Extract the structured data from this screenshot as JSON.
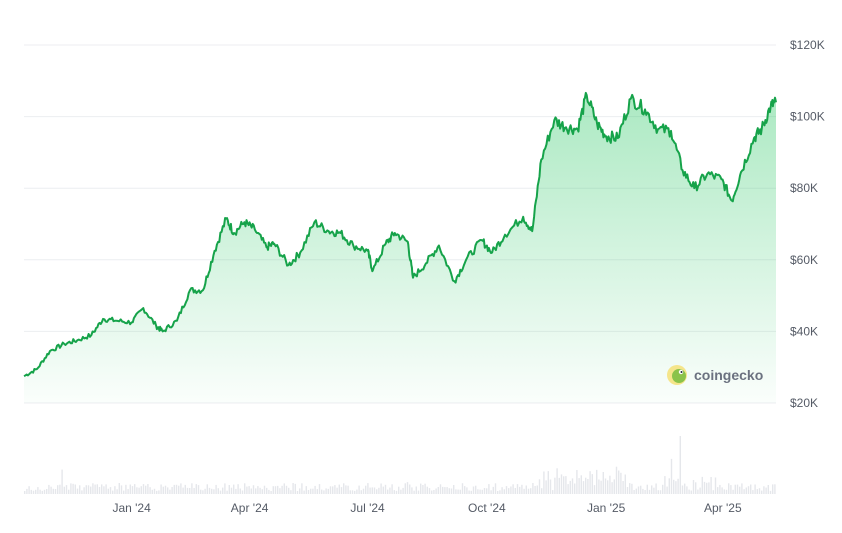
{
  "chart_data": {
    "type": "area",
    "title": "",
    "xlabel": "",
    "ylabel": "",
    "currency": "USD",
    "ylim": [
      20000,
      120000
    ],
    "y_ticks": [
      {
        "value": 120000,
        "label": "$120K"
      },
      {
        "value": 100000,
        "label": "$100K"
      },
      {
        "value": 80000,
        "label": "$80K"
      },
      {
        "value": 60000,
        "label": "$60K"
      },
      {
        "value": 40000,
        "label": "$40K"
      },
      {
        "value": 20000,
        "label": "$20K"
      }
    ],
    "xlim": [
      "2023-10-10",
      "2025-05-12"
    ],
    "x_ticks": [
      {
        "value": "2024-01-01",
        "label": "Jan '24"
      },
      {
        "value": "2024-04-01",
        "label": "Apr '24"
      },
      {
        "value": "2024-07-01",
        "label": "Jul '24"
      },
      {
        "value": "2024-10-01",
        "label": "Oct '24"
      },
      {
        "value": "2025-01-01",
        "label": "Jan '25"
      },
      {
        "value": "2025-04-01",
        "label": "Apr '25"
      }
    ],
    "grid": true,
    "line_color": "#16a34a",
    "fill_color": "#22c55e",
    "volume_color": "#e5e7eb",
    "x": [
      "2023-10-10",
      "2023-10-20",
      "2023-10-30",
      "2023-11-10",
      "2023-11-20",
      "2023-12-01",
      "2023-12-10",
      "2023-12-20",
      "2024-01-01",
      "2024-01-10",
      "2024-01-20",
      "2024-01-25",
      "2024-02-05",
      "2024-02-15",
      "2024-02-25",
      "2024-03-05",
      "2024-03-14",
      "2024-03-20",
      "2024-03-28",
      "2024-04-05",
      "2024-04-14",
      "2024-04-20",
      "2024-05-01",
      "2024-05-10",
      "2024-05-21",
      "2024-06-01",
      "2024-06-10",
      "2024-06-20",
      "2024-07-01",
      "2024-07-05",
      "2024-07-15",
      "2024-07-22",
      "2024-08-01",
      "2024-08-05",
      "2024-08-15",
      "2024-08-25",
      "2024-09-06",
      "2024-09-15",
      "2024-09-27",
      "2024-10-05",
      "2024-10-15",
      "2024-10-29",
      "2024-11-05",
      "2024-11-12",
      "2024-11-22",
      "2024-12-01",
      "2024-12-10",
      "2024-12-17",
      "2024-12-25",
      "2025-01-01",
      "2025-01-10",
      "2025-01-20",
      "2025-01-31",
      "2025-02-10",
      "2025-02-20",
      "2025-03-01",
      "2025-03-10",
      "2025-03-20",
      "2025-03-31",
      "2025-04-08",
      "2025-04-15",
      "2025-04-25",
      "2025-05-01",
      "2025-05-08",
      "2025-05-12"
    ],
    "series": [
      {
        "values": [
          27500,
          29500,
          34500,
          36500,
          37500,
          39000,
          43500,
          43000,
          42500,
          46500,
          41500,
          40000,
          43000,
          51500,
          51500,
          62500,
          71500,
          67500,
          70500,
          68500,
          63500,
          64500,
          58500,
          62000,
          70500,
          68000,
          67500,
          64000,
          62500,
          57000,
          64500,
          67500,
          65000,
          55000,
          59000,
          64000,
          54000,
          60000,
          65500,
          62000,
          67000,
          72000,
          68000,
          88000,
          99000,
          97000,
          96500,
          106000,
          98000,
          94500,
          94000,
          105000,
          102000,
          96500,
          96000,
          85000,
          80000,
          84000,
          82500,
          76500,
          84500,
          94000,
          96500,
          103000,
          104000
        ]
      }
    ]
  },
  "watermark": {
    "text": "coingecko",
    "icon": "gecko-logo-icon"
  }
}
